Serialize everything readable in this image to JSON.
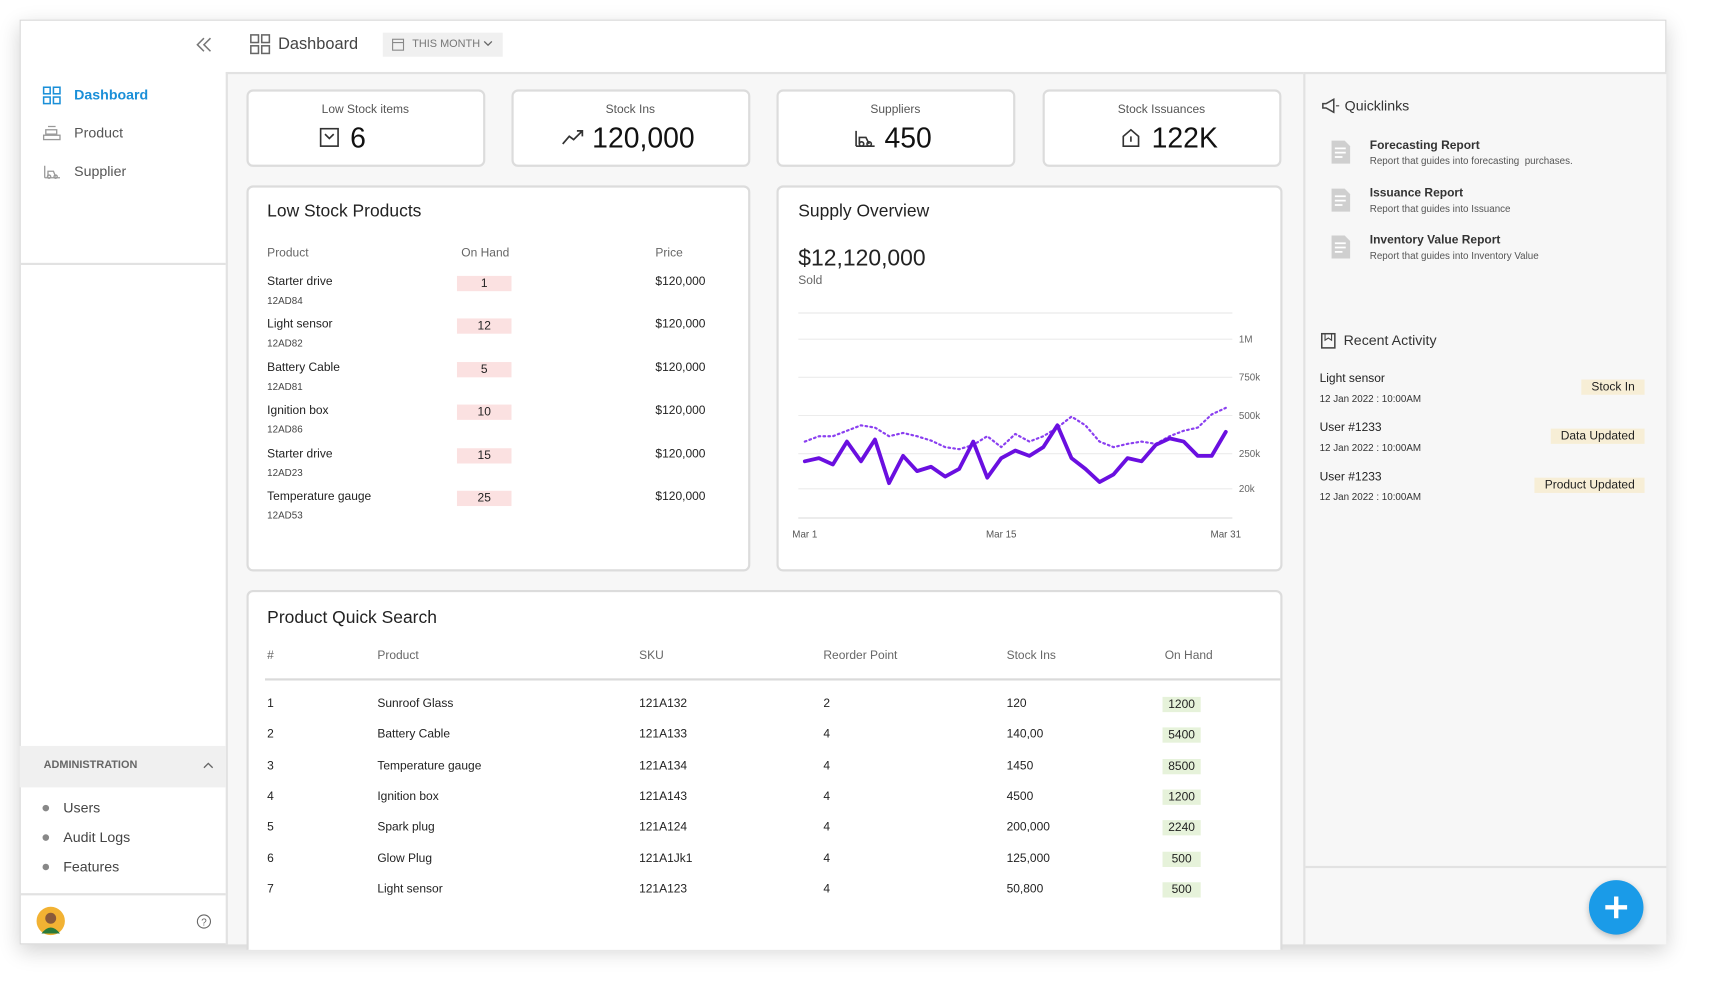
{
  "topbar": {
    "title": "Dashboard",
    "period": "THIS MONTH"
  },
  "sidebar": {
    "nav": [
      "Dashboard",
      "Product",
      "Supplier"
    ],
    "admin": {
      "title": "ADMINISTRATION",
      "items": [
        "Users",
        "Audit Logs",
        "Features"
      ]
    }
  },
  "stats": [
    {
      "label": "Low Stock items",
      "value": 6
    },
    {
      "label": "Stock Ins",
      "value": "120,000"
    },
    {
      "label": "Suppliers",
      "value": 450
    },
    {
      "label": "Stock Issuances",
      "value": "122K"
    }
  ],
  "low_stock": {
    "title": "Low Stock Products",
    "columns": [
      "Product",
      "On Hand",
      "Price"
    ],
    "rows": [
      {
        "name": "Starter drive",
        "sku": "12AD84",
        "on_hand": 1,
        "price": "$120,000"
      },
      {
        "name": "Light sensor",
        "sku": "12AD82",
        "on_hand": 12,
        "price": "$120,000"
      },
      {
        "name": "Battery Cable",
        "sku": "12AD81",
        "on_hand": 5,
        "price": "$120,000"
      },
      {
        "name": "Ignition box",
        "sku": "12AD86",
        "on_hand": 10,
        "price": "$120,000"
      },
      {
        "name": "Starter drive",
        "sku": "12AD23",
        "on_hand": 15,
        "price": "$120,000"
      },
      {
        "name": "Temperature gauge",
        "sku": "12AD53",
        "on_hand": 25,
        "price": "$120,000"
      }
    ]
  },
  "supply_overview": {
    "title": "Supply Overview",
    "total": "$12,120,000",
    "total_label": "Sold",
    "chart": {
      "type": "line",
      "categories": [
        "Mar 1",
        null,
        null,
        null,
        null,
        null,
        null,
        null,
        null,
        null,
        null,
        null,
        null,
        null,
        "Mar 15",
        null,
        null,
        null,
        null,
        null,
        null,
        null,
        null,
        null,
        null,
        null,
        null,
        null,
        null,
        null,
        "Mar 31"
      ],
      "series": [
        {
          "color": "#8a3ff0",
          "style": "dotted",
          "values": [
            329000,
            364000,
            364000,
            400000,
            436000,
            421000,
            364000,
            386000,
            364000,
            336000,
            293000,
            279000,
            307000,
            364000,
            293000,
            379000,
            329000,
            364000,
            421000,
            493000,
            436000,
            329000,
            293000,
            314000,
            329000,
            314000,
            364000,
            400000,
            421000,
            507000,
            550000
          ]
        },
        {
          "color": "#6a0fe0",
          "style": "solid",
          "values": [
            200000,
            221000,
            179000,
            329000,
            200000,
            343000,
            57000,
            236000,
            136000,
            164000,
            100000,
            150000,
            329000,
            93000,
            221000,
            271000,
            236000,
            293000,
            436000,
            221000,
            150000,
            64000,
            114000,
            221000,
            200000,
            307000,
            350000,
            329000,
            236000,
            236000,
            393000
          ]
        }
      ],
      "ylim": [
        0,
        1000000
      ],
      "yticks": [
        {
          "value": 1000000,
          "label": "1M"
        },
        {
          "value": 750000,
          "label": "750k"
        },
        {
          "value": 500000,
          "label": "500k"
        },
        {
          "value": 250000,
          "label": "250k"
        },
        {
          "value": 20000,
          "label": "20k"
        }
      ],
      "grid": true
    }
  },
  "quick_search": {
    "title": "Product Quick Search",
    "columns": [
      "#",
      "Product",
      "SKU",
      "Reorder Point",
      "Stock Ins",
      "On Hand"
    ],
    "rows": [
      [
        1,
        "Sunroof Glass",
        "121A132",
        2,
        120,
        1200
      ],
      [
        2,
        "Battery Cable",
        "121A133",
        4,
        "140,00",
        5400
      ],
      [
        3,
        "Temperature gauge",
        "121A134",
        4,
        1450,
        8500
      ],
      [
        4,
        "Ignition box",
        "121A143",
        4,
        4500,
        1200
      ],
      [
        5,
        "Spark plug",
        "121A124",
        4,
        "200,000",
        2240
      ],
      [
        6,
        "Glow Plug",
        "121A1Jk1",
        4,
        "125,000",
        500
      ],
      [
        7,
        "Light sensor",
        "121A123",
        4,
        "50,800",
        500
      ]
    ]
  },
  "quicklinks": {
    "title": "Quicklinks",
    "items": [
      {
        "title": "Forecasting Report",
        "desc": "Report that guides into forecasting  purchases."
      },
      {
        "title": "Issuance Report",
        "desc": "Report that guides into Issuance"
      },
      {
        "title": "Inventory Value Report",
        "desc": "Report that guides into Inventory Value"
      }
    ]
  },
  "recent_activity": {
    "title": "Recent Activity",
    "items": [
      {
        "name": "Light sensor",
        "date": "12 Jan 2022 : 10:00AM",
        "tag": "Stock In"
      },
      {
        "name": "User #1233",
        "date": "12 Jan 2022 : 10:00AM",
        "tag": "Data Updated"
      },
      {
        "name": "User #1233",
        "date": "12 Jan 2022 : 10:00AM",
        "tag": "Product Updated"
      }
    ]
  }
}
